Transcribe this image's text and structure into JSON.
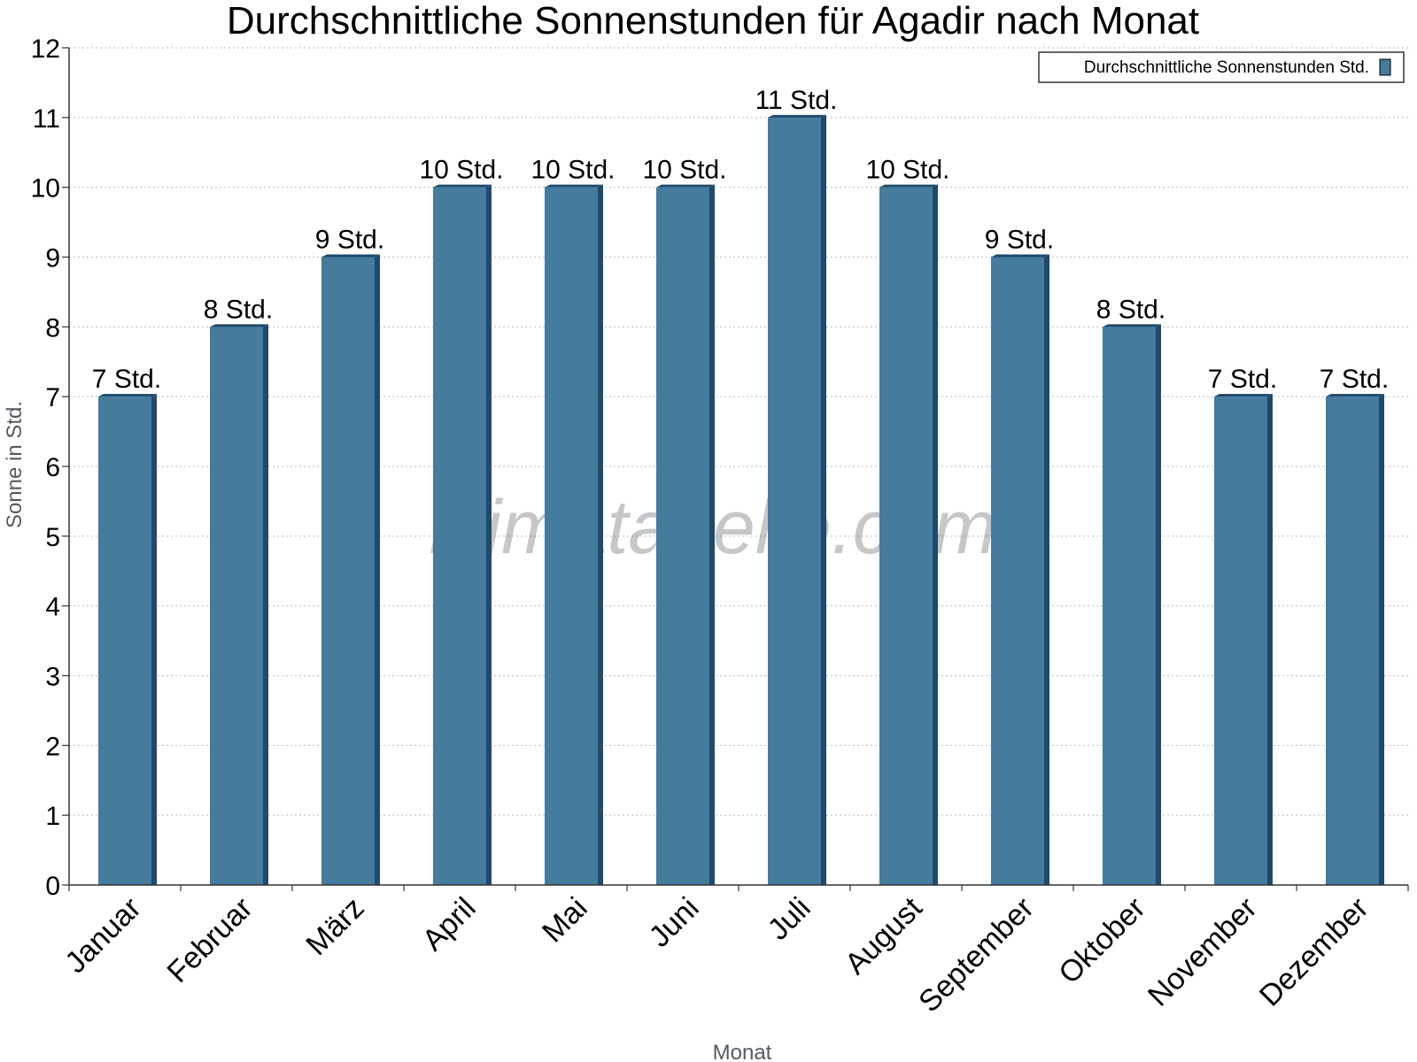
{
  "chart_data": {
    "type": "bar",
    "title": "Durchschnittliche Sonnenstunden für Agadir nach Monat",
    "xlabel": "Monat",
    "ylabel": "Sonne in Std.",
    "categories": [
      "Januar",
      "Februar",
      "März",
      "April",
      "Mai",
      "Juni",
      "Juli",
      "August",
      "September",
      "Oktober",
      "November",
      "Dezember"
    ],
    "series": [
      {
        "name": "Durchschnittliche Sonnenstunden Std.",
        "values": [
          7,
          8,
          9,
          10,
          10,
          10,
          11,
          10,
          9,
          8,
          7,
          7
        ],
        "data_labels": [
          "7 Std.",
          "8 Std.",
          "9 Std.",
          "10 Std.",
          "10 Std.",
          "10 Std.",
          "11 Std.",
          "10 Std.",
          "9 Std.",
          "8 Std.",
          "7 Std.",
          "7 Std."
        ]
      }
    ],
    "ylim": [
      0,
      12
    ],
    "yticks": [
      0,
      1,
      2,
      3,
      4,
      5,
      6,
      7,
      8,
      9,
      10,
      11,
      12
    ],
    "grid": true,
    "legend_position": "top-right",
    "colors": {
      "bar_front": "#457b9d",
      "bar_side": "#1e4a6b",
      "gridline": "#bbbbbb",
      "axis": "#333333"
    }
  },
  "watermark": "klimatabelle.com"
}
